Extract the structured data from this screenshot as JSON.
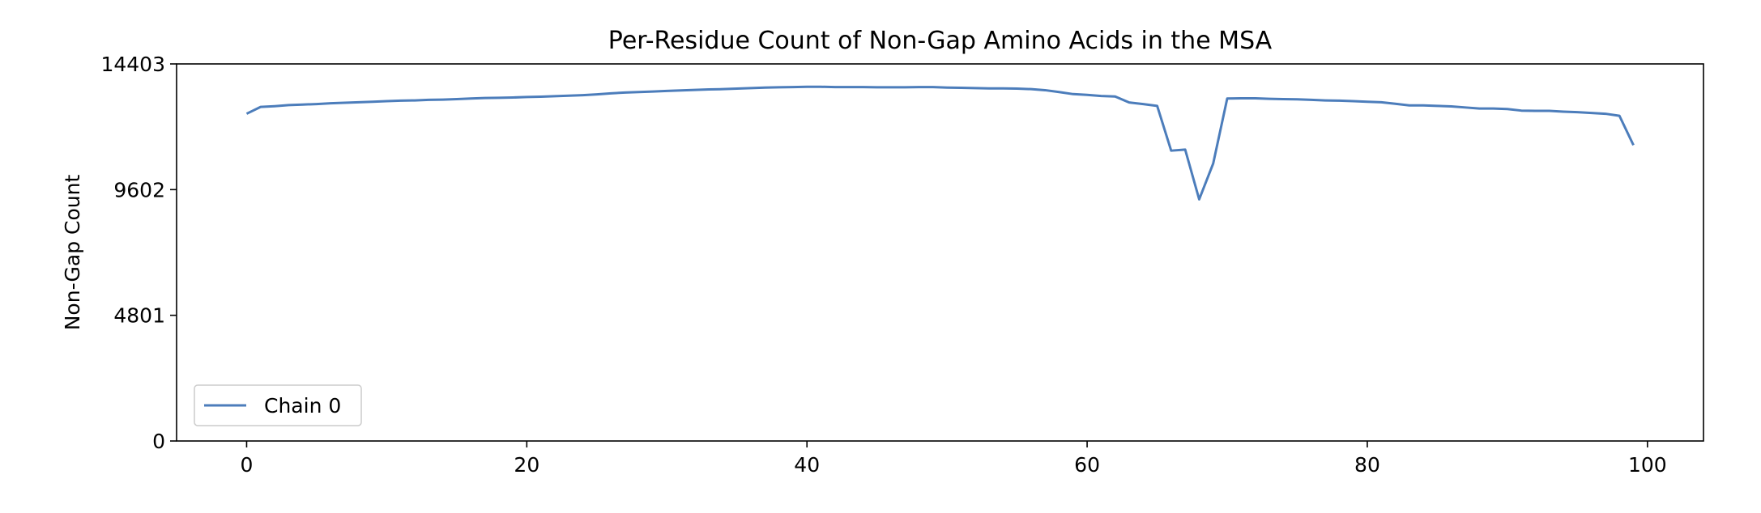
{
  "chart_data": {
    "type": "line",
    "title": "Per-Residue Count of Non-Gap Amino Acids in the MSA",
    "xlabel": "",
    "ylabel": "Non-Gap Count",
    "xlim": [
      -5,
      104
    ],
    "ylim": [
      0,
      14403
    ],
    "x_ticks": [
      0,
      20,
      40,
      60,
      80,
      100
    ],
    "y_ticks": [
      0,
      4801,
      9602,
      14403
    ],
    "grid": false,
    "legend_position": "lower-left",
    "series": [
      {
        "name": "Chain 0",
        "color": "#4c7dbb",
        "x": [
          0,
          1,
          2,
          3,
          4,
          5,
          6,
          7,
          8,
          9,
          10,
          11,
          12,
          13,
          14,
          15,
          16,
          17,
          18,
          19,
          20,
          21,
          22,
          23,
          24,
          25,
          26,
          27,
          28,
          29,
          30,
          31,
          32,
          33,
          34,
          35,
          36,
          37,
          38,
          39,
          40,
          41,
          42,
          43,
          44,
          45,
          46,
          47,
          48,
          49,
          50,
          51,
          52,
          53,
          54,
          55,
          56,
          57,
          58,
          59,
          60,
          61,
          62,
          63,
          64,
          65,
          66,
          67,
          68,
          69,
          70,
          71,
          72,
          73,
          74,
          75,
          76,
          77,
          78,
          79,
          80,
          81,
          82,
          83,
          84,
          85,
          86,
          87,
          88,
          89,
          90,
          91,
          92,
          93,
          94,
          95,
          96,
          97,
          98,
          99
        ],
        "values": [
          12500,
          12760,
          12790,
          12830,
          12850,
          12870,
          12900,
          12920,
          12940,
          12960,
          12980,
          13000,
          13010,
          13030,
          13040,
          13060,
          13080,
          13100,
          13110,
          13120,
          13140,
          13150,
          13170,
          13190,
          13210,
          13240,
          13280,
          13310,
          13330,
          13350,
          13370,
          13390,
          13410,
          13430,
          13440,
          13460,
          13480,
          13500,
          13510,
          13520,
          13530,
          13530,
          13520,
          13520,
          13520,
          13510,
          13510,
          13510,
          13520,
          13520,
          13500,
          13490,
          13480,
          13470,
          13470,
          13460,
          13440,
          13400,
          13330,
          13250,
          13220,
          13180,
          13160,
          12930,
          12870,
          12800,
          11090,
          11130,
          9230,
          10600,
          13080,
          13090,
          13090,
          13070,
          13060,
          13050,
          13030,
          13010,
          13000,
          12980,
          12960,
          12940,
          12880,
          12820,
          12820,
          12800,
          12780,
          12740,
          12700,
          12700,
          12680,
          12620,
          12610,
          12610,
          12580,
          12560,
          12530,
          12500,
          12420,
          11300
        ]
      }
    ]
  }
}
